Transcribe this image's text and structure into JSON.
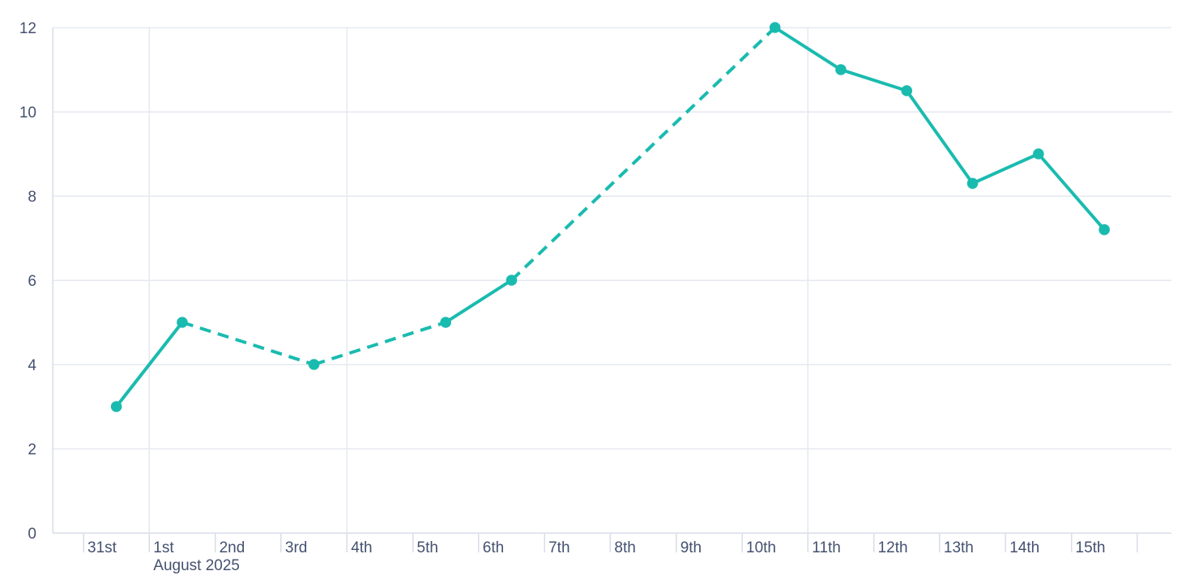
{
  "colors": {
    "line": "#1abbaf",
    "axis_text": "#44516f",
    "grid_line": "#e5e8f1",
    "axis_line": "#d9dde8",
    "background": "#ffffff"
  },
  "chart_data": {
    "type": "line",
    "title": "",
    "legend": "none",
    "grid": true,
    "x_axis": {
      "unit": "day",
      "tick_labels": [
        "31st",
        "1st",
        "2nd",
        "3rd",
        "4th",
        "5th",
        "6th",
        "7th",
        "8th",
        "9th",
        "10th",
        "11th",
        "12th",
        "13th",
        "14th",
        "15th",
        ""
      ],
      "month_label": "August 2025",
      "month_label_at": "1st",
      "vertical_gridlines_at": [
        "1st",
        "4th",
        "11th"
      ]
    },
    "y_axis": {
      "tick_labels": [
        "0",
        "2",
        "4",
        "6",
        "8",
        "10",
        "12"
      ],
      "tick_values": [
        0,
        2,
        4,
        6,
        8,
        10,
        12
      ],
      "range": [
        0,
        12
      ]
    },
    "series": [
      {
        "name": "daily-values",
        "color": "#1abbaf",
        "marker": "circle",
        "points": [
          {
            "x": "31st",
            "y": 3,
            "segment_to_next": "solid"
          },
          {
            "x": "1st",
            "y": 5,
            "segment_to_next": "dashed"
          },
          {
            "x": "3rd",
            "y": 4,
            "segment_to_next": "dashed"
          },
          {
            "x": "5th",
            "y": 5,
            "segment_to_next": "solid"
          },
          {
            "x": "6th",
            "y": 6,
            "segment_to_next": "dashed"
          },
          {
            "x": "10th",
            "y": 12,
            "segment_to_next": "solid"
          },
          {
            "x": "11th",
            "y": 11,
            "segment_to_next": "solid"
          },
          {
            "x": "12th",
            "y": 10.5,
            "segment_to_next": "solid"
          },
          {
            "x": "13th",
            "y": 8.3,
            "segment_to_next": "solid"
          },
          {
            "x": "14th",
            "y": 9,
            "segment_to_next": "solid"
          },
          {
            "x": "15th",
            "y": 7.2,
            "segment_to_next": null
          }
        ]
      }
    ]
  }
}
